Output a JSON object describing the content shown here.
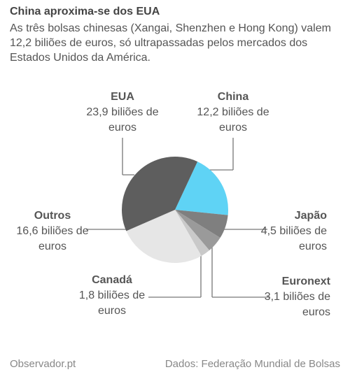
{
  "chart_data": {
    "type": "pie",
    "title": "China aproxima-se dos EUA",
    "subtitle": "As três bolsas chinesas (Xangai, Shenzhen e Hong Kong) valem 12,2 biliões de euros, só ultrapassadas pelos mercados dos Estados Unidos da América.",
    "categories": [
      "China",
      "Japão",
      "Euronext",
      "Canadá",
      "Outros",
      "EUA"
    ],
    "values": [
      12.2,
      4.5,
      3.1,
      1.8,
      16.6,
      23.9
    ],
    "value_labels": [
      "12,2 biliões de euros",
      "4,5 biliões de euros",
      "3,1 biliões de euros",
      "1,8 biliões de euros",
      "16,6 biliões de euros",
      "23,9 biliões de euros"
    ],
    "colors": [
      "#5fd3f5",
      "#7f7f7f",
      "#9a9a9a",
      "#c9c9c9",
      "#e6e6e6",
      "#5e5e5e"
    ],
    "source": "Observador.pt",
    "note": "Dados: Federação Mundial de Bolsas"
  }
}
